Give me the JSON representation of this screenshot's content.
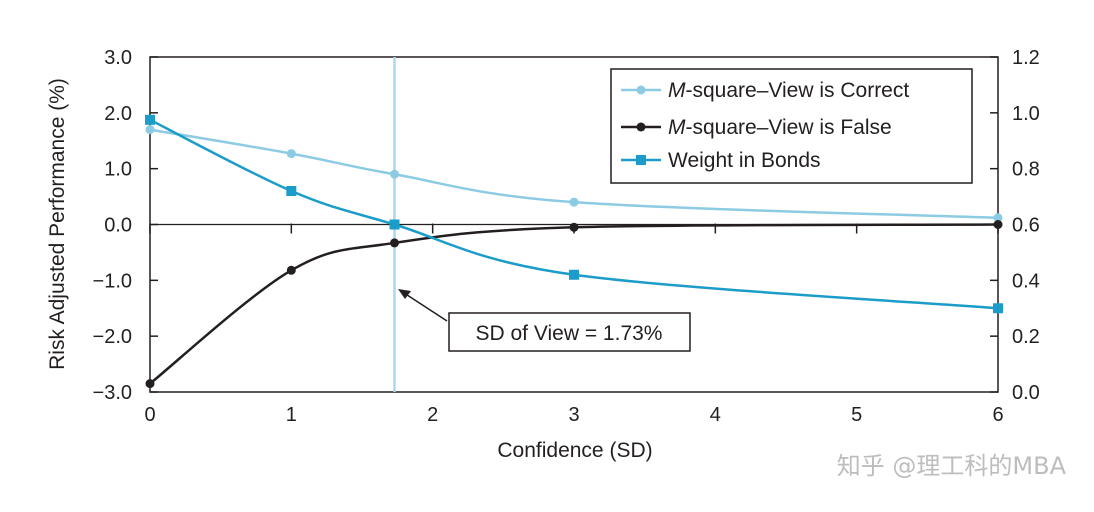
{
  "chart_data": {
    "type": "line",
    "x": [
      0,
      1,
      1.73,
      3,
      6
    ],
    "xlabel": "Confidence (SD)",
    "ylabel": "Risk Adjusted Performance (%)",
    "xlim": [
      0,
      6
    ],
    "ylim": [
      -3.0,
      3.0
    ],
    "y2lim": [
      0.0,
      1.2
    ],
    "x_ticks": [
      "0",
      "1",
      "2",
      "3",
      "4",
      "5",
      "6"
    ],
    "y_ticks": [
      "3.0",
      "2.0",
      "1.0",
      "0.0",
      "−1.0",
      "−2.0",
      "−3.0"
    ],
    "y2_ticks": [
      "1.2",
      "1.0",
      "0.8",
      "0.6",
      "0.4",
      "0.2",
      "0.0"
    ],
    "legend_position": "top-right",
    "series": [
      {
        "name_italic": "M",
        "name_rest": "-square–View is Correct",
        "axis": "left",
        "marker": "circle",
        "color": "#8ccbe3",
        "values": [
          1.7,
          1.27,
          0.9,
          0.4,
          0.12
        ]
      },
      {
        "name_italic": "M",
        "name_rest": "-square–View is False",
        "axis": "left",
        "marker": "circle",
        "color": "#231f20",
        "values": [
          -2.85,
          -0.82,
          -0.33,
          -0.05,
          0.0
        ]
      },
      {
        "name_italic": "",
        "name_rest": "Weight in Bonds",
        "axis": "right",
        "marker": "square",
        "color": "#1b9cc9",
        "values": [
          0.975,
          0.72,
          0.6,
          0.42,
          0.3
        ]
      }
    ],
    "vline": {
      "x": 1.73,
      "color": "#a9d8ec"
    },
    "annotation": {
      "text": "SD of View = 1.73%"
    }
  },
  "watermark": "知乎 @理工科的MBA"
}
